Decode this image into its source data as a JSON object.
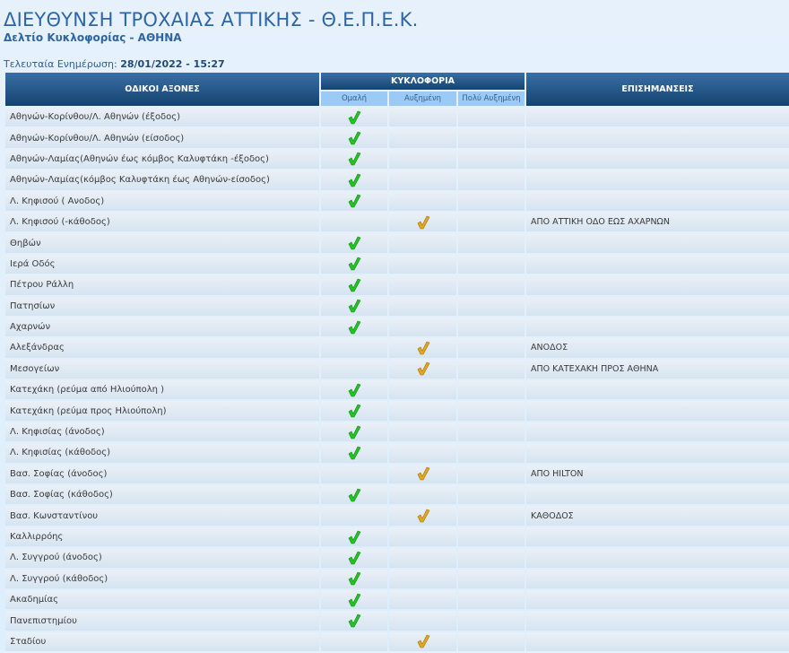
{
  "header": {
    "title": "ΔΙΕΥΘΥΝΣΗ ΤΡΟΧΑΙΑΣ ΑΤΤΙΚΗΣ - Θ.Ε.Π.Ε.Κ.",
    "subtitle": "Δελτίο Κυκλοφορίας - ΑΘΗΝΑ",
    "update_label": "Τελευταία Ενημέρωση:",
    "update_value": "28/01/2022 - 15:27"
  },
  "table": {
    "col_roads": "ΟΔΙΚΟΙ ΑΞΟΝΕΣ",
    "col_traffic": "ΚΥΚΛΟΦΟΡΙΑ",
    "col_notes": "ΕΠΙΣΗΜΑΝΣΕΙΣ",
    "levels": [
      "Ομαλή",
      "Αυξημένη",
      "Πολύ Αυξημένη"
    ],
    "colors": {
      "normal": "#22c422",
      "increased": "#e0a820"
    },
    "rows": [
      {
        "road": "Αθηνών-Κορίνθου/Λ. Αθηνών (έξοδος)",
        "level": 0,
        "note": ""
      },
      {
        "road": "Αθηνών-Κορίνθου/Λ. Αθηνών (είσοδος)",
        "level": 0,
        "note": ""
      },
      {
        "road": "Αθηνών-Λαμίας(Αθηνών έως κόμβος Καλυφτάκη -έξοδος)",
        "level": 0,
        "note": ""
      },
      {
        "road": "Αθηνών-Λαμίας(κόμβος Καλυφτάκη έως Αθηνών-είσοδος)",
        "level": 0,
        "note": ""
      },
      {
        "road": "Λ. Κηφισού ( Ανοδος)",
        "level": 0,
        "note": ""
      },
      {
        "road": "Λ. Κηφισού (-κάθοδος)",
        "level": 1,
        "note": "ΑΠΟ ΑΤΤΙΚΗ ΟΔΟ ΕΩΣ ΑΧΑΡΝΩΝ"
      },
      {
        "road": "Θηβών",
        "level": 0,
        "note": ""
      },
      {
        "road": "Ιερά Οδός",
        "level": 0,
        "note": ""
      },
      {
        "road": "Πέτρου Ράλλη",
        "level": 0,
        "note": ""
      },
      {
        "road": "Πατησίων",
        "level": 0,
        "note": ""
      },
      {
        "road": "Αχαρνών",
        "level": 0,
        "note": ""
      },
      {
        "road": "Αλεξάνδρας",
        "level": 1,
        "note": "ΑΝΟΔΟΣ"
      },
      {
        "road": "Μεσογείων",
        "level": 1,
        "note": "ΑΠΟ ΚΑΤΕΧΑΚΗ ΠΡΟΣ ΑΘΗΝΑ"
      },
      {
        "road": "Κατεχάκη (ρεύμα από Ηλιούπολη )",
        "level": 0,
        "note": ""
      },
      {
        "road": "Κατεχάκη (ρεύμα προς Ηλιούπολη)",
        "level": 0,
        "note": ""
      },
      {
        "road": "Λ. Κηφισίας (άνοδος)",
        "level": 0,
        "note": ""
      },
      {
        "road": "Λ. Κηφισίας (κάθοδος)",
        "level": 0,
        "note": ""
      },
      {
        "road": "Βασ. Σοφίας (άνοδος)",
        "level": 1,
        "note": "ΑΠΟ HILTON"
      },
      {
        "road": "Βασ. Σοφίας (κάθοδος)",
        "level": 0,
        "note": ""
      },
      {
        "road": "Βασ. Κωνσταντίνου",
        "level": 1,
        "note": "ΚΑΘΟΔΟΣ"
      },
      {
        "road": "Καλλιρρόης",
        "level": 0,
        "note": ""
      },
      {
        "road": "Λ. Συγγρού (άνοδος)",
        "level": 0,
        "note": ""
      },
      {
        "road": "Λ. Συγγρού (κάθοδος)",
        "level": 0,
        "note": ""
      },
      {
        "road": "Ακαδημίας",
        "level": 0,
        "note": ""
      },
      {
        "road": "Πανεπιστημίου",
        "level": 0,
        "note": ""
      },
      {
        "road": "Σταδίου",
        "level": 1,
        "note": ""
      }
    ]
  }
}
